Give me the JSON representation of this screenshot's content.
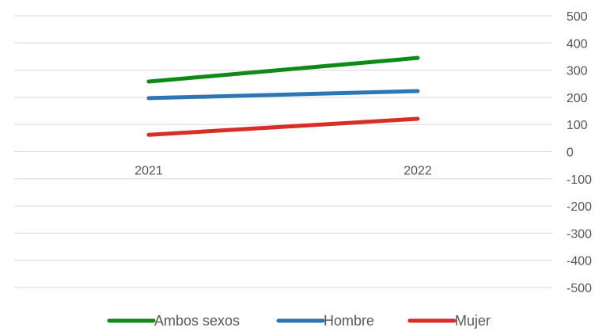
{
  "chart_data": {
    "type": "line",
    "title": "",
    "xlabel": "",
    "ylabel": "",
    "categories": [
      "2021",
      "2022"
    ],
    "ylim": [
      -500,
      500
    ],
    "yticks": [
      500,
      400,
      300,
      200,
      100,
      0,
      -100,
      -200,
      -300,
      -400,
      -500
    ],
    "grid": true,
    "y_axis_position": "right",
    "legend_position": "bottom",
    "series": [
      {
        "name": "Ambos sexos",
        "values": [
          258,
          345
        ],
        "color": "#0e8a16"
      },
      {
        "name": "Hombre",
        "values": [
          197,
          223
        ],
        "color": "#2e75b6"
      },
      {
        "name": "Mujer",
        "values": [
          62,
          121
        ],
        "color": "#d92d27"
      }
    ]
  }
}
